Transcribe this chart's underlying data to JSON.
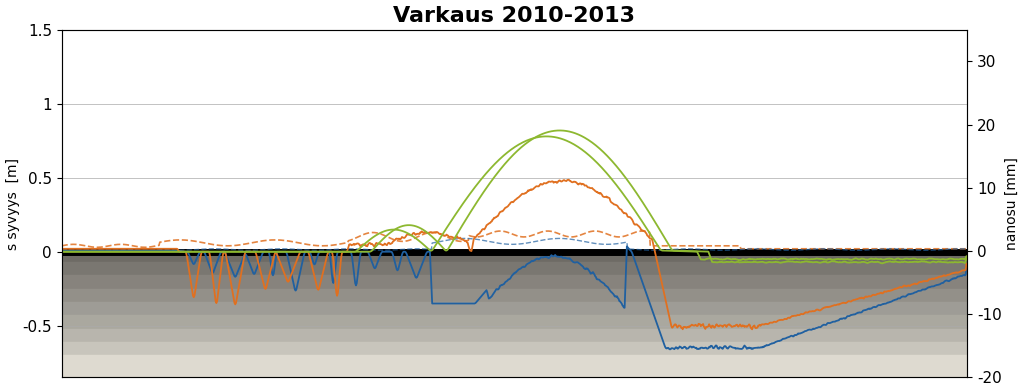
{
  "title": "Varkaus 2010-2013",
  "ylabel_left": "s syvyys  [m]",
  "ylabel_right": "nanosu [mm]",
  "ylim_left": [
    -0.85,
    1.5
  ],
  "ylim_right": [
    -20,
    35
  ],
  "xlim": [
    0,
    1200
  ],
  "title_fontsize": 16,
  "title_fontweight": "bold",
  "n_points": 1200,
  "blue_color": "#2060a0",
  "orange_color": "#e07020",
  "green_color": "#8db830",
  "black_line_lw": 5,
  "bg_bands": [
    {
      "ymin": -0.07,
      "ymax": 0.0,
      "color": "#6e6b65"
    },
    {
      "ymin": -0.16,
      "ymax": -0.07,
      "color": "#7a7771"
    },
    {
      "ymin": -0.25,
      "ymax": -0.16,
      "color": "#87837d"
    },
    {
      "ymin": -0.34,
      "ymax": -0.25,
      "color": "#939089"
    },
    {
      "ymin": -0.43,
      "ymax": -0.34,
      "color": "#9e9c96"
    },
    {
      "ymin": -0.52,
      "ymax": -0.43,
      "color": "#aaa89f"
    },
    {
      "ymin": -0.61,
      "ymax": -0.52,
      "color": "#b8b5ad"
    },
    {
      "ymin": -0.7,
      "ymax": -0.61,
      "color": "#c8c5bc"
    },
    {
      "ymin": -0.85,
      "ymax": -0.7,
      "color": "#dedad0"
    }
  ]
}
